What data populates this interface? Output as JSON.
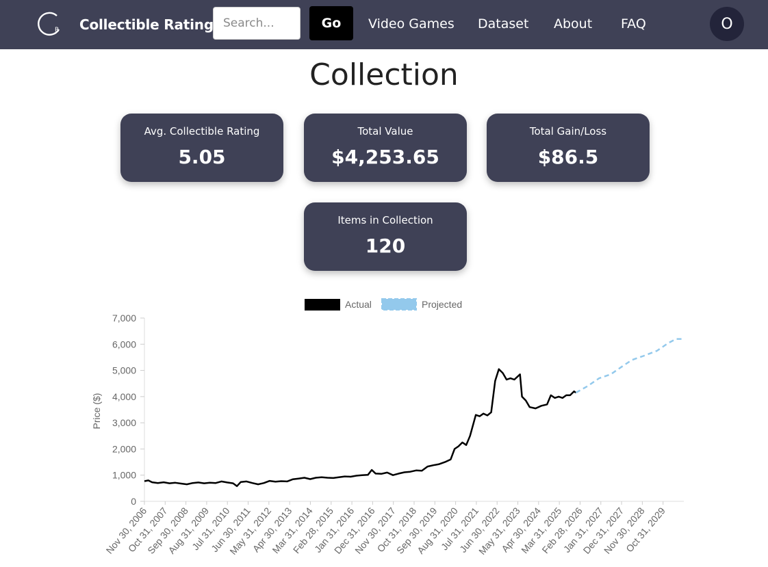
{
  "navbar": {
    "brand": "Collectible Rating",
    "logo_icon": "cr-logo-icon",
    "search": {
      "placeholder": "Search...",
      "value": ""
    },
    "go_label": "Go",
    "links": [
      "Video Games",
      "Dataset",
      "About",
      "FAQ"
    ],
    "avatar_initial": "O",
    "background": "#3f4156"
  },
  "page": {
    "title": "Collection"
  },
  "stats": [
    {
      "label": "Avg. Collectible Rating",
      "value": "5.05"
    },
    {
      "label": "Total Value",
      "value": "$4,253.65"
    },
    {
      "label": "Total Gain/Loss",
      "value": "$86.5"
    },
    {
      "label": "Items in Collection",
      "value": "120"
    }
  ],
  "chart_data": {
    "type": "line",
    "title": "",
    "xlabel": "",
    "ylabel": "Price ($)",
    "ylim": [
      0,
      7000
    ],
    "yticks": [
      "0",
      "1,000",
      "2,000",
      "3,000",
      "4,000",
      "5,000",
      "6,000",
      "7,000"
    ],
    "grid": "x-baseline only",
    "legend_position": "top-center",
    "x_tick_labels": [
      "Nov 30, 2006",
      "Oct 31, 2007",
      "Sep 30, 2008",
      "Aug 31, 2009",
      "Jul 31, 2010",
      "Jun 30, 2011",
      "May 31, 2012",
      "Apr 30, 2013",
      "Mar 31, 2014",
      "Feb 28, 2015",
      "Jan 31, 2016",
      "Dec 31, 2016",
      "Nov 30, 2017",
      "Oct 31, 2018",
      "Sep 30, 2019",
      "Aug 31, 2020",
      "Jul 31, 2021",
      "Jun 30, 2022",
      "May 31, 2023",
      "Apr 30, 2024",
      "Mar 31, 2025",
      "Feb 28, 2026",
      "Jan 31, 2027",
      "Dec 31, 2027",
      "Nov 30, 2028",
      "Oct 31, 2029"
    ],
    "series": [
      {
        "name": "Actual",
        "color": "#000000",
        "style": "solid",
        "points": [
          [
            "2006-11-30",
            770
          ],
          [
            "2007-01-31",
            800
          ],
          [
            "2007-03-31",
            730
          ],
          [
            "2007-06-30",
            700
          ],
          [
            "2007-09-30",
            730
          ],
          [
            "2007-12-31",
            690
          ],
          [
            "2008-03-31",
            710
          ],
          [
            "2008-06-30",
            680
          ],
          [
            "2008-09-30",
            650
          ],
          [
            "2008-12-31",
            700
          ],
          [
            "2009-03-31",
            720
          ],
          [
            "2009-06-30",
            690
          ],
          [
            "2009-09-30",
            710
          ],
          [
            "2009-12-31",
            700
          ],
          [
            "2010-03-31",
            760
          ],
          [
            "2010-06-30",
            720
          ],
          [
            "2010-09-30",
            690
          ],
          [
            "2010-11-30",
            580
          ],
          [
            "2011-01-31",
            740
          ],
          [
            "2011-04-30",
            760
          ],
          [
            "2011-07-31",
            700
          ],
          [
            "2011-10-31",
            650
          ],
          [
            "2012-01-31",
            700
          ],
          [
            "2012-04-30",
            780
          ],
          [
            "2012-07-31",
            750
          ],
          [
            "2012-10-31",
            770
          ],
          [
            "2013-01-31",
            760
          ],
          [
            "2013-04-30",
            840
          ],
          [
            "2013-07-31",
            870
          ],
          [
            "2013-10-31",
            900
          ],
          [
            "2014-01-31",
            850
          ],
          [
            "2014-04-30",
            900
          ],
          [
            "2014-07-31",
            920
          ],
          [
            "2014-10-31",
            900
          ],
          [
            "2015-01-31",
            890
          ],
          [
            "2015-04-30",
            920
          ],
          [
            "2015-07-31",
            950
          ],
          [
            "2015-10-31",
            940
          ],
          [
            "2016-01-31",
            980
          ],
          [
            "2016-04-30",
            1000
          ],
          [
            "2016-07-31",
            1010
          ],
          [
            "2016-09-30",
            1200
          ],
          [
            "2016-11-30",
            1060
          ],
          [
            "2017-02-28",
            1050
          ],
          [
            "2017-05-31",
            1100
          ],
          [
            "2017-08-31",
            1000
          ],
          [
            "2017-11-30",
            1060
          ],
          [
            "2018-02-28",
            1110
          ],
          [
            "2018-05-31",
            1130
          ],
          [
            "2018-08-31",
            1180
          ],
          [
            "2018-11-30",
            1170
          ],
          [
            "2019-02-28",
            1330
          ],
          [
            "2019-05-31",
            1380
          ],
          [
            "2019-08-31",
            1420
          ],
          [
            "2019-11-30",
            1500
          ],
          [
            "2020-02-29",
            1600
          ],
          [
            "2020-04-30",
            2000
          ],
          [
            "2020-06-30",
            2100
          ],
          [
            "2020-08-31",
            2250
          ],
          [
            "2020-10-31",
            2150
          ],
          [
            "2020-12-31",
            2500
          ],
          [
            "2021-03-31",
            3300
          ],
          [
            "2021-05-31",
            3250
          ],
          [
            "2021-07-31",
            3350
          ],
          [
            "2021-09-30",
            3280
          ],
          [
            "2021-11-30",
            3400
          ],
          [
            "2022-01-31",
            4600
          ],
          [
            "2022-03-31",
            5050
          ],
          [
            "2022-05-31",
            4900
          ],
          [
            "2022-07-31",
            4650
          ],
          [
            "2022-09-30",
            4700
          ],
          [
            "2022-11-30",
            4650
          ],
          [
            "2023-02-28",
            4850
          ],
          [
            "2023-03-31",
            4000
          ],
          [
            "2023-05-31",
            3850
          ],
          [
            "2023-07-31",
            3600
          ],
          [
            "2023-10-31",
            3550
          ],
          [
            "2024-01-31",
            3650
          ],
          [
            "2024-04-30",
            3700
          ],
          [
            "2024-06-30",
            4050
          ],
          [
            "2024-08-31",
            3950
          ],
          [
            "2024-10-31",
            4000
          ],
          [
            "2024-12-31",
            3950
          ],
          [
            "2025-02-28",
            4050
          ],
          [
            "2025-04-30",
            4050
          ],
          [
            "2025-06-30",
            4200
          ],
          [
            "2025-07-31",
            4150
          ]
        ]
      },
      {
        "name": "Projected",
        "color": "#93c9ec",
        "style": "dashed",
        "points": [
          [
            "2025-07-31",
            4150
          ],
          [
            "2026-01-31",
            4400
          ],
          [
            "2026-07-31",
            4700
          ],
          [
            "2027-01-31",
            4850
          ],
          [
            "2027-07-31",
            5150
          ],
          [
            "2027-12-31",
            5400
          ],
          [
            "2028-06-30",
            5550
          ],
          [
            "2029-01-31",
            5750
          ],
          [
            "2029-07-31",
            6050
          ],
          [
            "2029-11-30",
            6200
          ],
          [
            "2030-03-31",
            6200
          ]
        ]
      }
    ]
  }
}
